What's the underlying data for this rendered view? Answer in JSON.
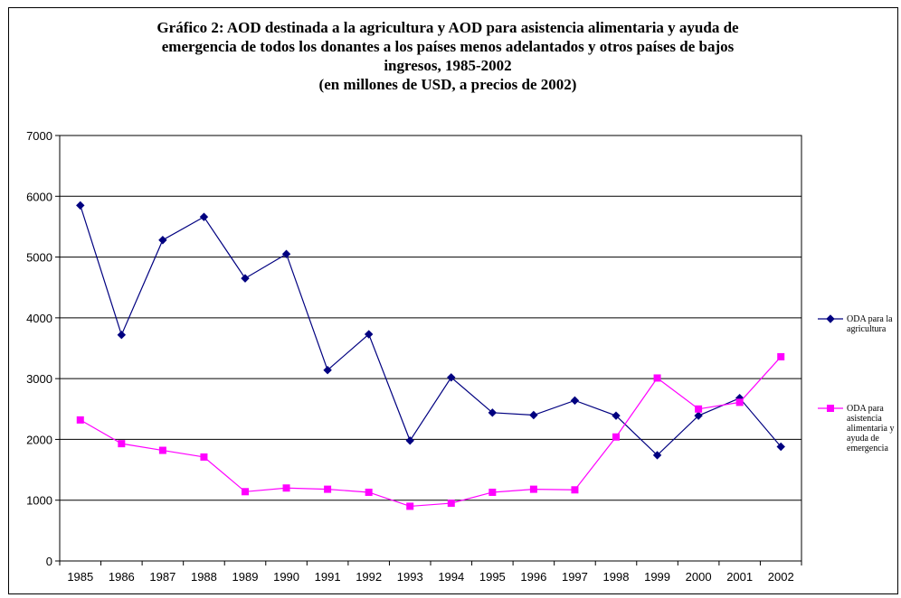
{
  "chart_data": {
    "type": "line",
    "title_lines": [
      "Gráfico 2: AOD destinada a la agricultura y AOD para asistencia alimentaria y ayuda de",
      "emergencia de todos los donantes a los países menos adelantados y otros países de bajos",
      "ingresos, 1985-2002",
      "(en millones de USD, a precios de 2002)"
    ],
    "x": [
      "1985",
      "1986",
      "1987",
      "1988",
      "1989",
      "1990",
      "1991",
      "1992",
      "1993",
      "1994",
      "1995",
      "1996",
      "1997",
      "1998",
      "1999",
      "2000",
      "2001",
      "2002"
    ],
    "ylim": [
      0,
      7000
    ],
    "yticks": [
      "0",
      "1000",
      "2000",
      "3000",
      "4000",
      "5000",
      "6000",
      "7000"
    ],
    "grid": true,
    "legend_position": "right",
    "series": [
      {
        "name_lines": [
          "ODA para la",
          "agricultura"
        ],
        "color": "#000080",
        "marker": "diamond",
        "values": [
          5850,
          3720,
          5280,
          5660,
          4650,
          5050,
          3140,
          3730,
          1980,
          3020,
          2440,
          2400,
          2640,
          2390,
          1740,
          2390,
          2680,
          1880
        ]
      },
      {
        "name_lines": [
          "ODA para",
          "asistencia",
          "alimentaria y",
          "ayuda de",
          "emergencia"
        ],
        "color": "#ff00ff",
        "marker": "square",
        "values": [
          2320,
          1930,
          1820,
          1710,
          1140,
          1200,
          1180,
          1130,
          900,
          950,
          1130,
          1180,
          1170,
          2040,
          3010,
          2500,
          2610,
          3360
        ]
      }
    ]
  }
}
